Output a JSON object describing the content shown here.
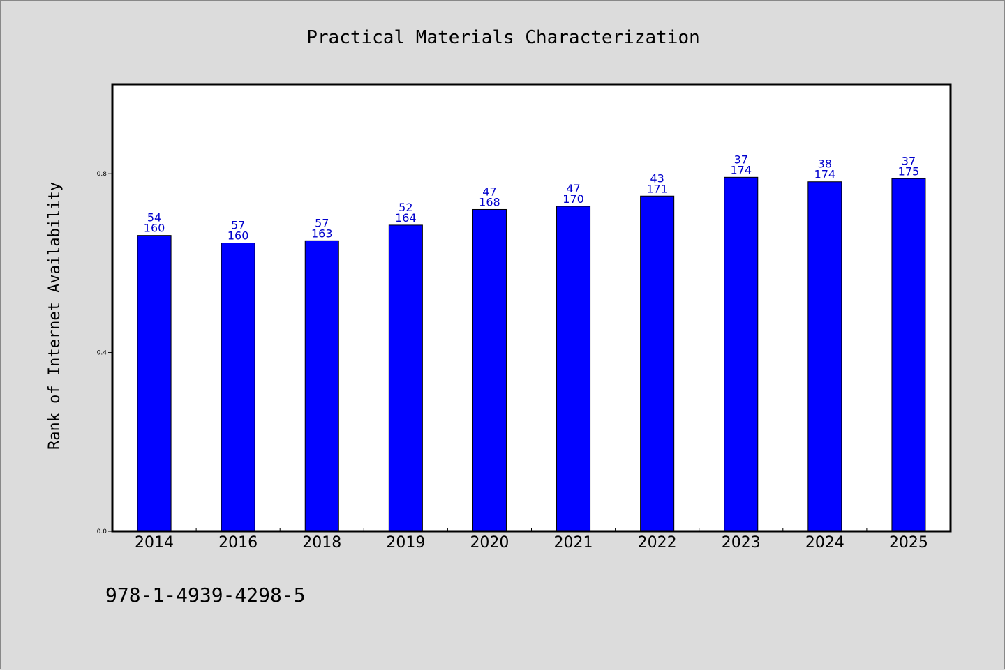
{
  "colors": {
    "background": "#dcdcdc",
    "plot_background": "#ffffff",
    "bar": "#0000ff",
    "bar_label": "#0000cc",
    "axis": "#000000"
  },
  "footer": {
    "isbn": "978-1-4939-4298-5"
  },
  "chart_data": {
    "type": "bar",
    "title": "Practical Materials Characterization",
    "xlabel": "",
    "ylabel": "Rank of Internet Availability",
    "ylim": [
      0.0,
      1.0
    ],
    "yticks": [
      {
        "value": 0.0,
        "label": "0.0"
      },
      {
        "value": 0.4,
        "label": "0.4"
      },
      {
        "value": 0.8,
        "label": "0.8"
      }
    ],
    "grid": false,
    "legend": "none",
    "categories": [
      "2014",
      "2016",
      "2018",
      "2019",
      "2020",
      "2021",
      "2022",
      "2023",
      "2024",
      "2025"
    ],
    "values": [
      0.662,
      0.645,
      0.65,
      0.685,
      0.72,
      0.727,
      0.75,
      0.792,
      0.782,
      0.789
    ],
    "annotations_top": [
      "54",
      "57",
      "57",
      "52",
      "47",
      "47",
      "43",
      "37",
      "38",
      "37"
    ],
    "annotations_bottom": [
      "160",
      "160",
      "163",
      "164",
      "168",
      "170",
      "171",
      "174",
      "174",
      "175"
    ]
  }
}
